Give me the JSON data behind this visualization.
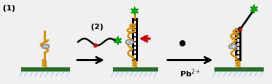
{
  "bg_color": "#f0f0f0",
  "gold_color": "#D4900A",
  "surface_color": "#2A6B2A",
  "hatch_color": "#99CCEE",
  "black": "#000000",
  "red_arrow_color": "#CC0000",
  "green_star": "#00BB00",
  "dark_green": "#006600",
  "gray_ellipse": "#999999",
  "red_dot": "#CC0000",
  "label_1": "(1)",
  "label_2": "(2)",
  "figsize": [
    3.92,
    1.21
  ],
  "dpi": 100,
  "xlim": [
    0,
    10.5
  ],
  "ylim": [
    0,
    3.2
  ]
}
